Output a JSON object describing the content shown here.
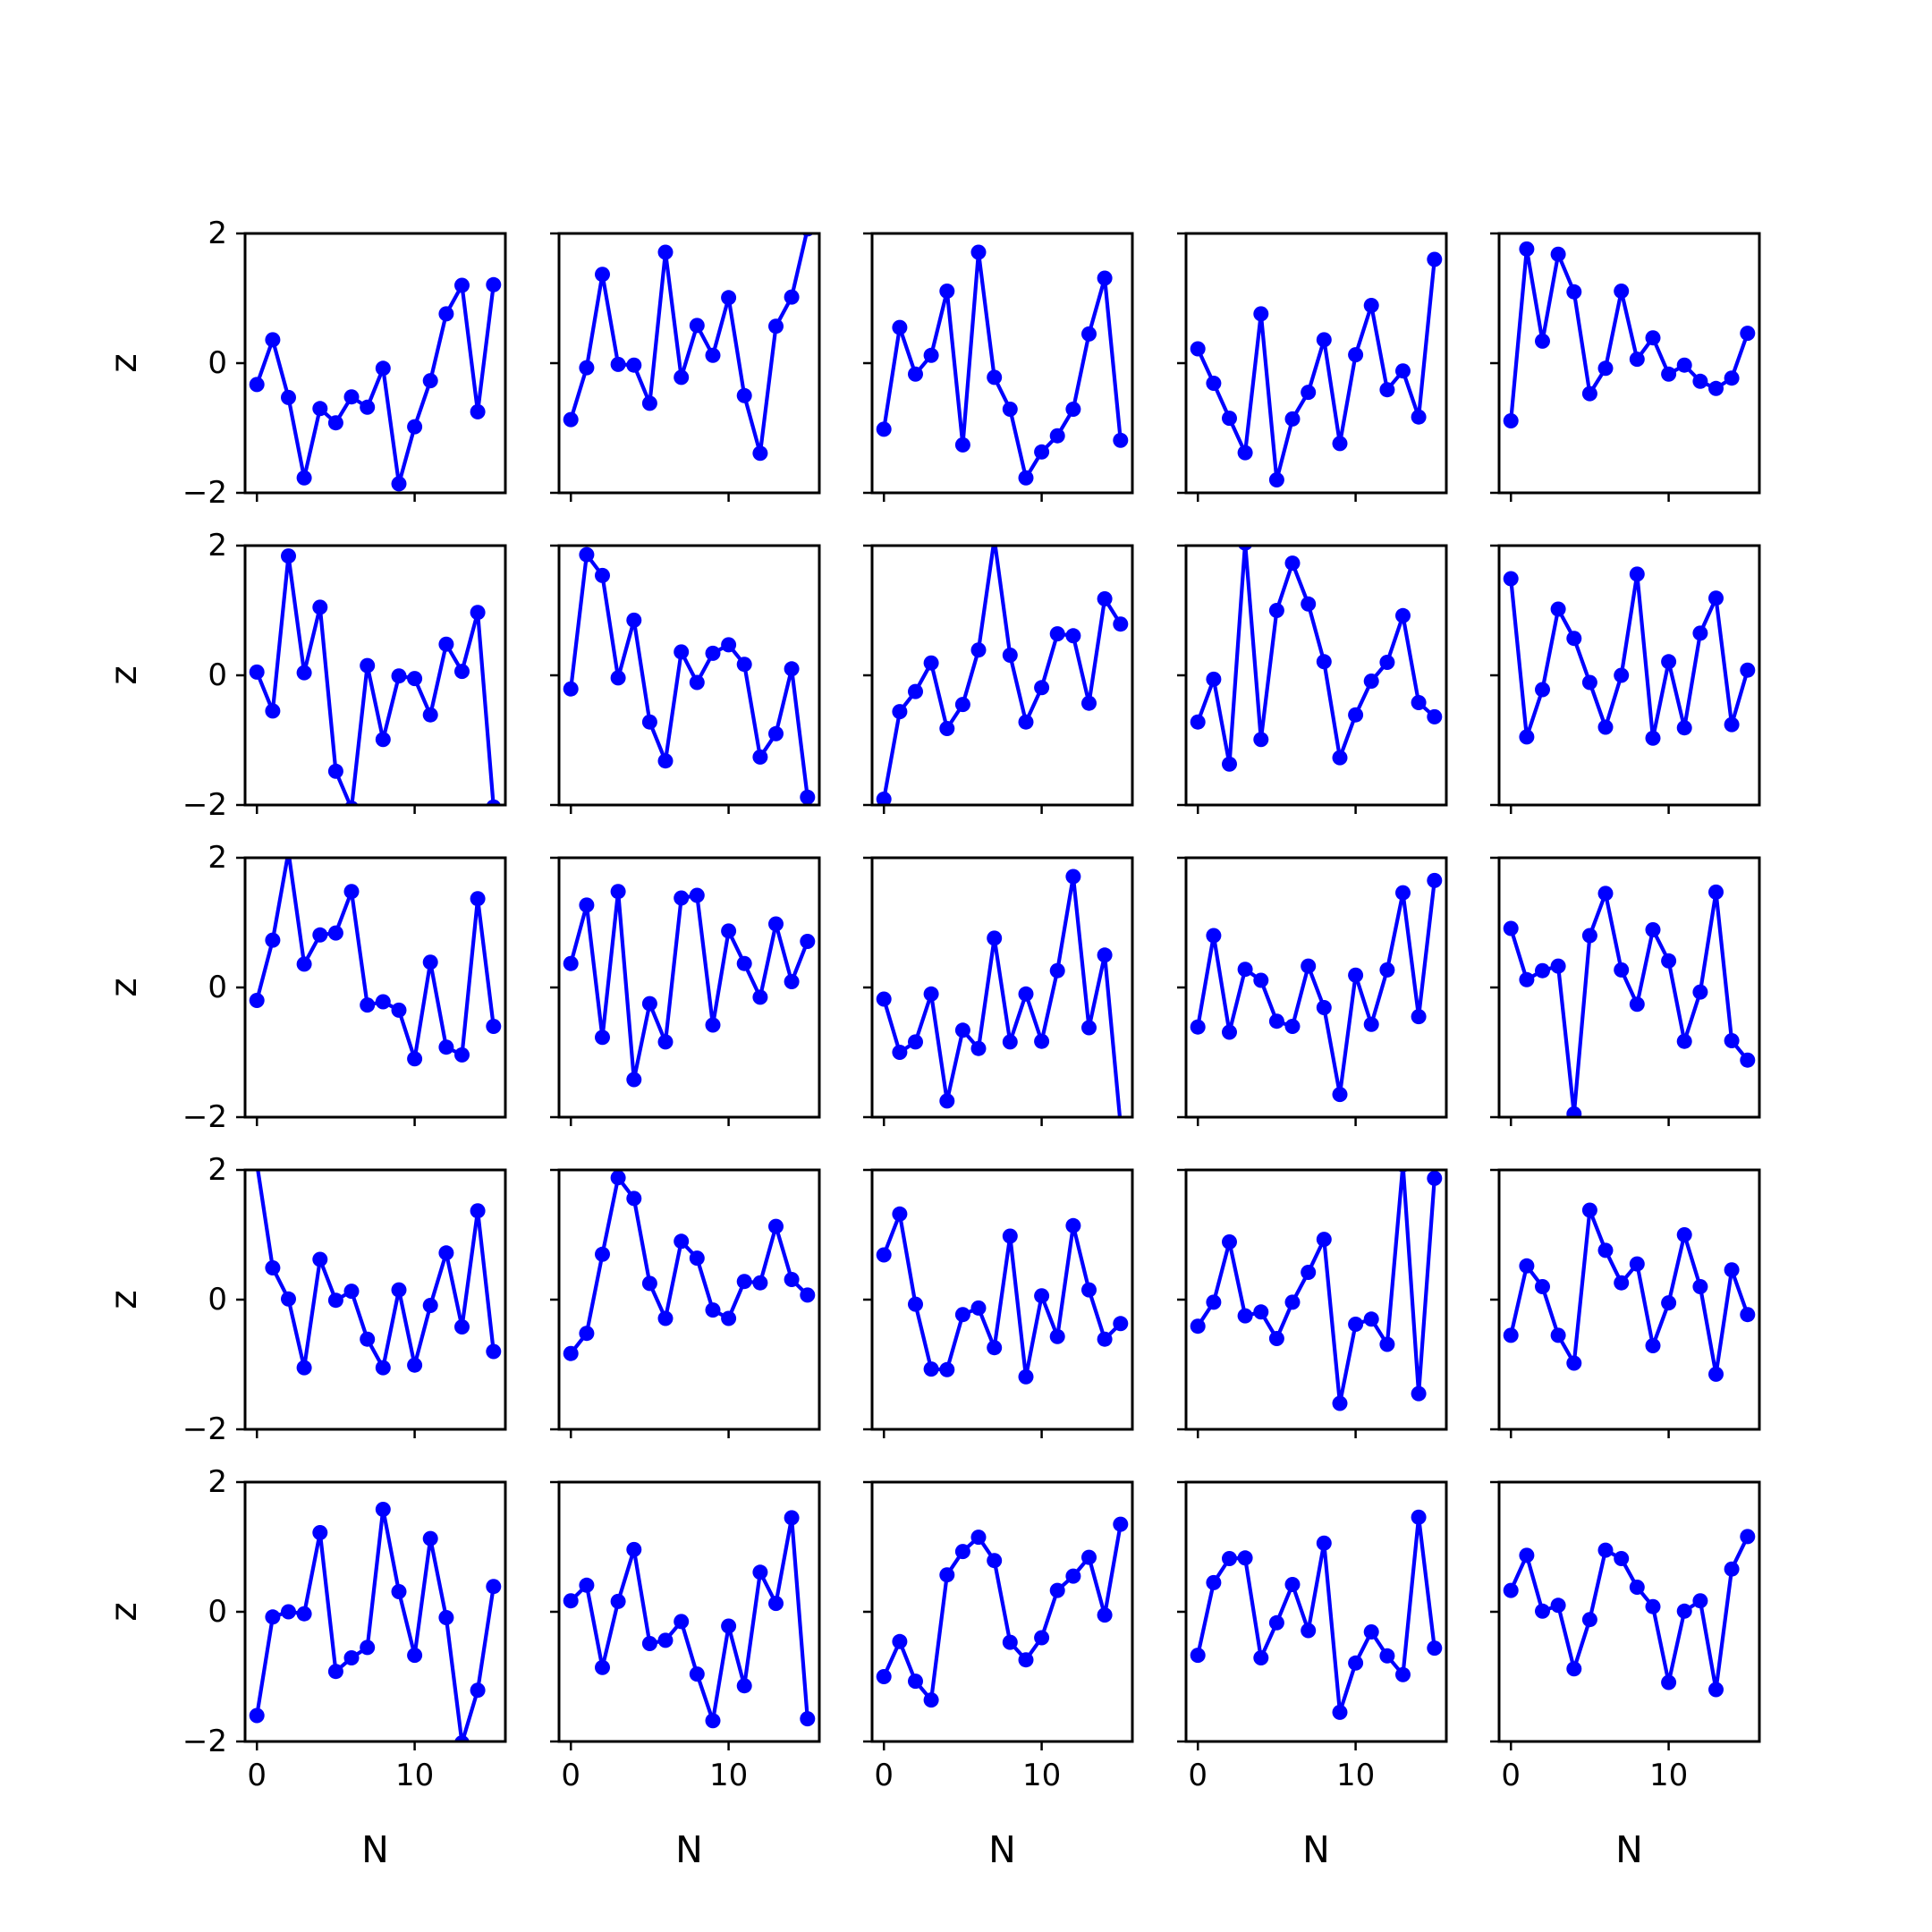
{
  "figure": {
    "xlabel": "N",
    "ylabel": "z",
    "ytick_labels": [
      "−2",
      "0",
      "2"
    ],
    "xtick_labels": [
      "0",
      "10"
    ]
  },
  "chart_data": {
    "type": "line",
    "layout": "5x5 grid of subplots, shared x and y axes",
    "xlabel": "N",
    "ylabel": "z",
    "xlim": [
      -0.75,
      15.75
    ],
    "ylim": [
      -2,
      2
    ],
    "yticks": [
      -2,
      0,
      2
    ],
    "xticks": [
      0,
      10
    ],
    "grid": false,
    "line_color": "#0000ff",
    "marker": "circle",
    "x": [
      0,
      1,
      2,
      3,
      4,
      5,
      6,
      7,
      8,
      9,
      10,
      11,
      12,
      13,
      14,
      15
    ],
    "panels": [
      {
        "row": 0,
        "col": 0,
        "values": [
          -0.33,
          0.36,
          -0.53,
          -1.77,
          -0.7,
          -0.92,
          -0.52,
          -0.68,
          -0.08,
          -1.86,
          -0.98,
          -0.27,
          0.76,
          1.2,
          -0.75,
          1.21
        ]
      },
      {
        "row": 0,
        "col": 1,
        "values": [
          -0.87,
          -0.07,
          1.37,
          -0.02,
          -0.03,
          -0.62,
          1.71,
          -0.22,
          0.58,
          0.12,
          1.01,
          -0.5,
          -1.39,
          0.57,
          1.02,
          2.07
        ]
      },
      {
        "row": 0,
        "col": 2,
        "values": [
          -1.02,
          0.55,
          -0.17,
          0.12,
          1.11,
          -1.26,
          1.71,
          -0.22,
          -0.71,
          -1.77,
          -1.37,
          -1.12,
          -0.71,
          0.45,
          1.31,
          -1.19
        ]
      },
      {
        "row": 0,
        "col": 3,
        "values": [
          0.22,
          -0.31,
          -0.85,
          -1.38,
          0.76,
          -1.8,
          -0.86,
          -0.45,
          0.36,
          -1.24,
          0.13,
          0.89,
          -0.41,
          -0.12,
          -0.83,
          1.6
        ]
      },
      {
        "row": 0,
        "col": 4,
        "values": [
          -0.89,
          1.76,
          0.34,
          1.68,
          1.1,
          -0.47,
          -0.08,
          1.11,
          0.06,
          0.39,
          -0.17,
          -0.03,
          -0.28,
          -0.39,
          -0.23,
          0.46
        ]
      },
      {
        "row": 1,
        "col": 0,
        "values": [
          0.05,
          -0.55,
          1.84,
          0.04,
          1.05,
          -1.48,
          -2.05,
          0.15,
          -0.99,
          -0.01,
          -0.05,
          -0.61,
          0.48,
          0.06,
          0.97,
          -2.03
        ]
      },
      {
        "row": 1,
        "col": 1,
        "values": [
          -0.21,
          1.86,
          1.54,
          -0.04,
          0.85,
          -0.72,
          -1.32,
          0.36,
          -0.11,
          0.34,
          0.47,
          0.17,
          -1.26,
          -0.9,
          0.1,
          -1.88
        ]
      },
      {
        "row": 1,
        "col": 2,
        "values": [
          -1.91,
          -0.56,
          -0.25,
          0.19,
          -0.82,
          -0.45,
          0.39,
          2.1,
          0.31,
          -0.72,
          -0.19,
          0.64,
          0.61,
          -0.43,
          1.18,
          0.79
        ]
      },
      {
        "row": 1,
        "col": 3,
        "values": [
          -0.72,
          -0.06,
          -1.37,
          2.04,
          -0.99,
          1.0,
          1.73,
          1.1,
          0.21,
          -1.27,
          -0.61,
          -0.09,
          0.2,
          0.92,
          -0.42,
          -0.64
        ]
      },
      {
        "row": 1,
        "col": 4,
        "values": [
          1.49,
          -0.95,
          -0.22,
          1.02,
          0.57,
          -0.11,
          -0.8,
          0.0,
          1.56,
          -0.97,
          0.21,
          -0.81,
          0.65,
          1.19,
          -0.76,
          0.08
        ]
      },
      {
        "row": 2,
        "col": 0,
        "values": [
          -0.2,
          0.73,
          2.09,
          0.36,
          0.81,
          0.84,
          1.48,
          -0.27,
          -0.22,
          -0.35,
          -1.1,
          0.39,
          -0.92,
          -1.04,
          1.37,
          -0.6
        ]
      },
      {
        "row": 2,
        "col": 1,
        "values": [
          0.37,
          1.27,
          -0.77,
          1.48,
          -1.42,
          -0.25,
          -0.84,
          1.38,
          1.42,
          -0.58,
          0.87,
          0.37,
          -0.15,
          0.98,
          0.09,
          0.71
        ]
      },
      {
        "row": 2,
        "col": 2,
        "values": [
          -0.18,
          -1.0,
          -0.84,
          -0.1,
          -1.75,
          -0.66,
          -0.94,
          0.76,
          -0.84,
          -0.1,
          -0.83,
          0.26,
          1.71,
          -0.62,
          0.5,
          -2.12
        ]
      },
      {
        "row": 2,
        "col": 3,
        "values": [
          -0.61,
          0.8,
          -0.69,
          0.28,
          0.11,
          -0.52,
          -0.6,
          0.33,
          -0.31,
          -1.65,
          0.19,
          -0.57,
          0.27,
          1.46,
          -0.45,
          1.65
        ]
      },
      {
        "row": 2,
        "col": 4,
        "values": [
          0.91,
          0.12,
          0.26,
          0.33,
          -1.95,
          0.8,
          1.45,
          0.27,
          -0.26,
          0.89,
          0.41,
          -0.83,
          -0.07,
          1.47,
          -0.82,
          -1.12
        ]
      },
      {
        "row": 3,
        "col": 0,
        "values": [
          2.1,
          0.49,
          0.01,
          -1.05,
          0.62,
          -0.01,
          0.13,
          -0.61,
          -1.05,
          0.15,
          -1.01,
          -0.09,
          0.72,
          -0.42,
          1.37,
          -0.8
        ]
      },
      {
        "row": 3,
        "col": 1,
        "values": [
          -0.83,
          -0.52,
          0.7,
          1.88,
          1.56,
          0.25,
          -0.29,
          0.9,
          0.64,
          -0.16,
          -0.29,
          0.28,
          0.26,
          1.13,
          0.31,
          0.07
        ]
      },
      {
        "row": 3,
        "col": 2,
        "values": [
          0.69,
          1.32,
          -0.07,
          -1.07,
          -1.08,
          -0.23,
          -0.13,
          -0.74,
          0.98,
          -1.19,
          0.06,
          -0.57,
          1.14,
          0.15,
          -0.61,
          -0.37
        ]
      },
      {
        "row": 3,
        "col": 3,
        "values": [
          -0.41,
          -0.04,
          0.89,
          -0.25,
          -0.19,
          -0.6,
          -0.04,
          0.42,
          0.93,
          -1.6,
          -0.38,
          -0.3,
          -0.69,
          2.08,
          -1.45,
          1.87
        ]
      },
      {
        "row": 3,
        "col": 4,
        "values": [
          -0.55,
          0.52,
          0.2,
          -0.55,
          -0.98,
          1.38,
          0.76,
          0.26,
          0.55,
          -0.71,
          -0.05,
          1.0,
          0.2,
          -1.15,
          0.46,
          -0.23
        ]
      },
      {
        "row": 4,
        "col": 0,
        "values": [
          -1.6,
          -0.08,
          0.0,
          -0.03,
          1.22,
          -0.92,
          -0.71,
          -0.55,
          1.58,
          0.31,
          -0.67,
          1.13,
          -0.09,
          -2.02,
          -1.21,
          0.39
        ]
      },
      {
        "row": 4,
        "col": 1,
        "values": [
          0.17,
          0.41,
          -0.86,
          0.16,
          0.96,
          -0.49,
          -0.44,
          -0.15,
          -0.96,
          -1.68,
          -0.22,
          -1.14,
          0.61,
          0.13,
          1.45,
          -1.65
        ]
      },
      {
        "row": 4,
        "col": 2,
        "values": [
          -1.0,
          -0.46,
          -1.07,
          -1.36,
          0.57,
          0.93,
          1.15,
          0.79,
          -0.47,
          -0.74,
          -0.4,
          0.33,
          0.55,
          0.84,
          -0.05,
          1.35
        ]
      },
      {
        "row": 4,
        "col": 3,
        "values": [
          -0.67,
          0.45,
          0.82,
          0.83,
          -0.71,
          -0.17,
          0.42,
          -0.29,
          1.06,
          -1.55,
          -0.79,
          -0.31,
          -0.68,
          -0.97,
          1.46,
          -0.56
        ]
      },
      {
        "row": 4,
        "col": 4,
        "values": [
          0.33,
          0.87,
          0.01,
          0.1,
          -0.88,
          -0.12,
          0.95,
          0.82,
          0.38,
          0.08,
          -1.09,
          0.01,
          0.17,
          -1.2,
          0.66,
          1.16
        ]
      }
    ]
  }
}
